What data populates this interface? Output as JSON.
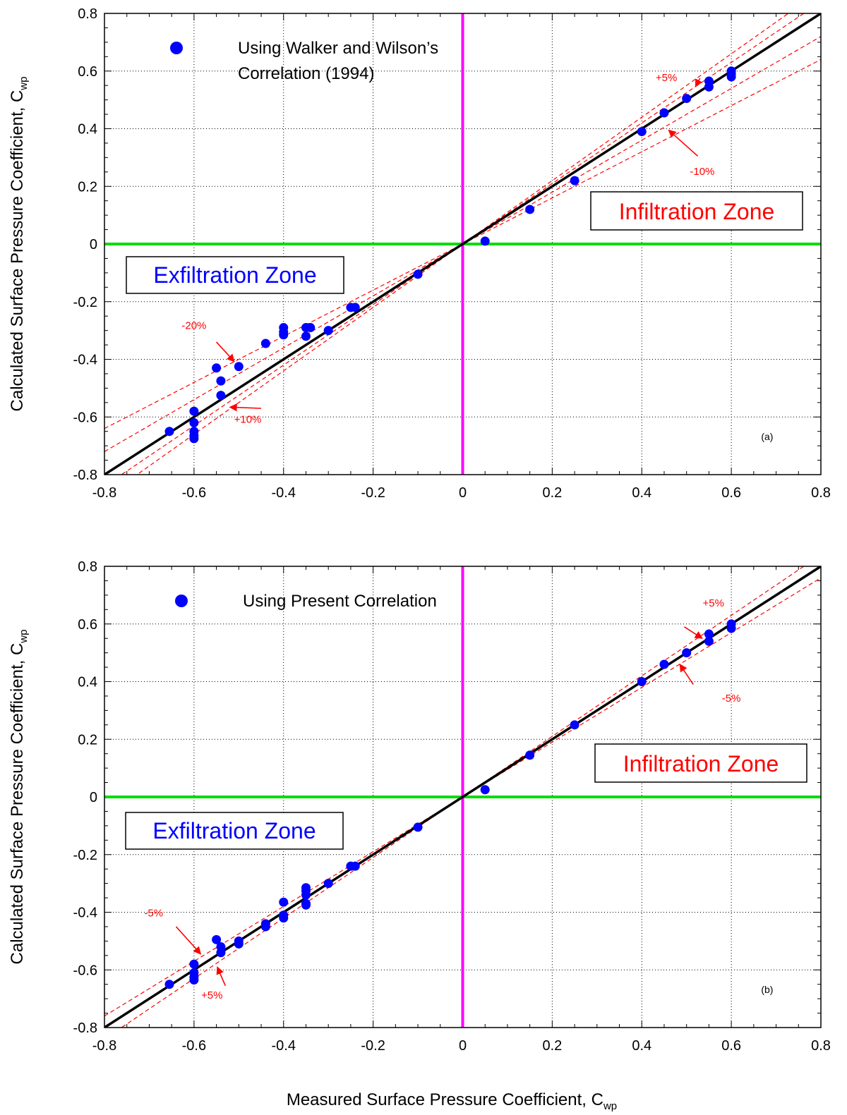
{
  "colors": {
    "points": "#0000ff",
    "fit_line": "#000000",
    "bounds": "#ff0000",
    "zero_x": "#00dd00",
    "zero_y": "#ff00ff",
    "infiltration": "#ff0000",
    "exfiltration": "#0000ff"
  },
  "x_axis_label": {
    "main": "Measured Surface Pressure Coefficient, C",
    "sub": "wp"
  },
  "chart_data": [
    {
      "type": "scatter",
      "panel": "(a)",
      "legend": [
        "Using Walker and Wilson’s",
        "Correlation (1994)"
      ],
      "ylabel": {
        "main": "Calculated Surface Pressure Coefficient, C",
        "sub": "wp"
      },
      "xlim": [
        -0.8,
        0.8
      ],
      "ylim": [
        -0.8,
        0.8
      ],
      "ticks": [
        "-0.8",
        "-0.6",
        "-0.4",
        "-0.2",
        "0",
        "0.2",
        "0.4",
        "0.6",
        "0.8"
      ],
      "grid": "dotted",
      "zones": {
        "infiltration": "Infiltration Zone",
        "exfiltration": "Exfiltration Zone"
      },
      "points": [
        [
          -0.655,
          -0.65
        ],
        [
          -0.6,
          -0.58
        ],
        [
          -0.6,
          -0.62
        ],
        [
          -0.6,
          -0.65
        ],
        [
          -0.6,
          -0.665
        ],
        [
          -0.6,
          -0.675
        ],
        [
          -0.55,
          -0.43
        ],
        [
          -0.54,
          -0.475
        ],
        [
          -0.54,
          -0.525
        ],
        [
          -0.5,
          -0.425
        ],
        [
          -0.44,
          -0.345
        ],
        [
          -0.4,
          -0.29
        ],
        [
          -0.4,
          -0.305
        ],
        [
          -0.4,
          -0.315
        ],
        [
          -0.35,
          -0.29
        ],
        [
          -0.35,
          -0.32
        ],
        [
          -0.34,
          -0.29
        ],
        [
          -0.3,
          -0.3
        ],
        [
          -0.25,
          -0.22
        ],
        [
          -0.24,
          -0.22
        ],
        [
          -0.1,
          -0.105
        ],
        [
          0.05,
          0.01
        ],
        [
          0.15,
          0.12
        ],
        [
          0.25,
          0.22
        ],
        [
          0.4,
          0.39
        ],
        [
          0.45,
          0.455
        ],
        [
          0.5,
          0.505
        ],
        [
          0.55,
          0.545
        ],
        [
          0.55,
          0.565
        ],
        [
          0.6,
          0.58
        ],
        [
          0.6,
          0.59
        ],
        [
          0.6,
          0.6
        ]
      ],
      "bounds": [
        {
          "slope": 1.05,
          "label": "+5%",
          "at": 0.52,
          "label_pos": [
            0.455,
            0.565
          ]
        },
        {
          "slope": 0.9,
          "label": "-10%",
          "at": 0.45,
          "label_pos": [
            0.535,
            0.24
          ]
        },
        {
          "slope": 0.8,
          "label": "-20%",
          "at": -0.51,
          "label_pos": [
            -0.6,
            -0.295
          ]
        },
        {
          "slope": 1.1,
          "label": "+10%",
          "at": -0.525,
          "label_pos": [
            -0.48,
            -0.62
          ]
        }
      ],
      "arrows": [
        {
          "from": [
            0.53,
            0.575
          ],
          "to": [
            0.52,
            0.546
          ]
        },
        {
          "from": [
            0.525,
            0.305
          ],
          "to": [
            0.46,
            0.395
          ]
        },
        {
          "from": [
            -0.55,
            -0.34
          ],
          "to": [
            -0.51,
            -0.408
          ]
        },
        {
          "from": [
            -0.45,
            -0.57
          ],
          "to": [
            -0.52,
            -0.566
          ]
        }
      ]
    },
    {
      "type": "scatter",
      "panel": "(b)",
      "legend": [
        "Using Present Correlation"
      ],
      "ylabel": {
        "main": "Calculated Surface Pressure Coefficient, C",
        "sub": "wp"
      },
      "xlim": [
        -0.8,
        0.8
      ],
      "ylim": [
        -0.8,
        0.8
      ],
      "ticks": [
        "-0.8",
        "-0.6",
        "-0.4",
        "-0.2",
        "0",
        "0.2",
        "0.4",
        "0.6",
        "0.8"
      ],
      "grid": "dotted",
      "zones": {
        "infiltration": "Infiltration Zone",
        "exfiltration": "Exfiltration Zone"
      },
      "points": [
        [
          -0.655,
          -0.65
        ],
        [
          -0.6,
          -0.58
        ],
        [
          -0.6,
          -0.61
        ],
        [
          -0.6,
          -0.625
        ],
        [
          -0.6,
          -0.635
        ],
        [
          -0.55,
          -0.495
        ],
        [
          -0.54,
          -0.52
        ],
        [
          -0.54,
          -0.54
        ],
        [
          -0.5,
          -0.5
        ],
        [
          -0.5,
          -0.51
        ],
        [
          -0.44,
          -0.44
        ],
        [
          -0.44,
          -0.45
        ],
        [
          -0.4,
          -0.365
        ],
        [
          -0.4,
          -0.41
        ],
        [
          -0.4,
          -0.42
        ],
        [
          -0.35,
          -0.315
        ],
        [
          -0.35,
          -0.325
        ],
        [
          -0.35,
          -0.34
        ],
        [
          -0.35,
          -0.37
        ],
        [
          -0.35,
          -0.375
        ],
        [
          -0.3,
          -0.3
        ],
        [
          -0.25,
          -0.24
        ],
        [
          -0.24,
          -0.24
        ],
        [
          -0.1,
          -0.105
        ],
        [
          0.05,
          0.025
        ],
        [
          0.15,
          0.145
        ],
        [
          0.25,
          0.25
        ],
        [
          0.4,
          0.4
        ],
        [
          0.45,
          0.46
        ],
        [
          0.5,
          0.5
        ],
        [
          0.55,
          0.54
        ],
        [
          0.55,
          0.565
        ],
        [
          0.6,
          0.585
        ],
        [
          0.6,
          0.6
        ]
      ],
      "bounds": [
        {
          "slope": 1.05,
          "label": "+5%",
          "at": 0.52,
          "label_pos": [
            0.56,
            0.66
          ]
        },
        {
          "slope": 0.95,
          "label": "-5%",
          "at": 0.5,
          "label_pos": [
            0.6,
            0.33
          ]
        },
        {
          "slope": 0.95,
          "label": "-5%",
          "at": -0.57,
          "label_pos": [
            -0.69,
            -0.415
          ]
        },
        {
          "slope": 1.05,
          "label": "+5%",
          "at": -0.55,
          "label_pos": [
            -0.56,
            -0.7
          ]
        }
      ],
      "arrows": [
        {
          "from": [
            0.495,
            0.59
          ],
          "to": [
            0.535,
            0.55
          ]
        },
        {
          "from": [
            0.515,
            0.39
          ],
          "to": [
            0.485,
            0.46
          ]
        },
        {
          "from": [
            -0.64,
            -0.45
          ],
          "to": [
            -0.585,
            -0.545
          ]
        },
        {
          "from": [
            -0.53,
            -0.655
          ],
          "to": [
            -0.548,
            -0.59
          ]
        }
      ]
    }
  ]
}
